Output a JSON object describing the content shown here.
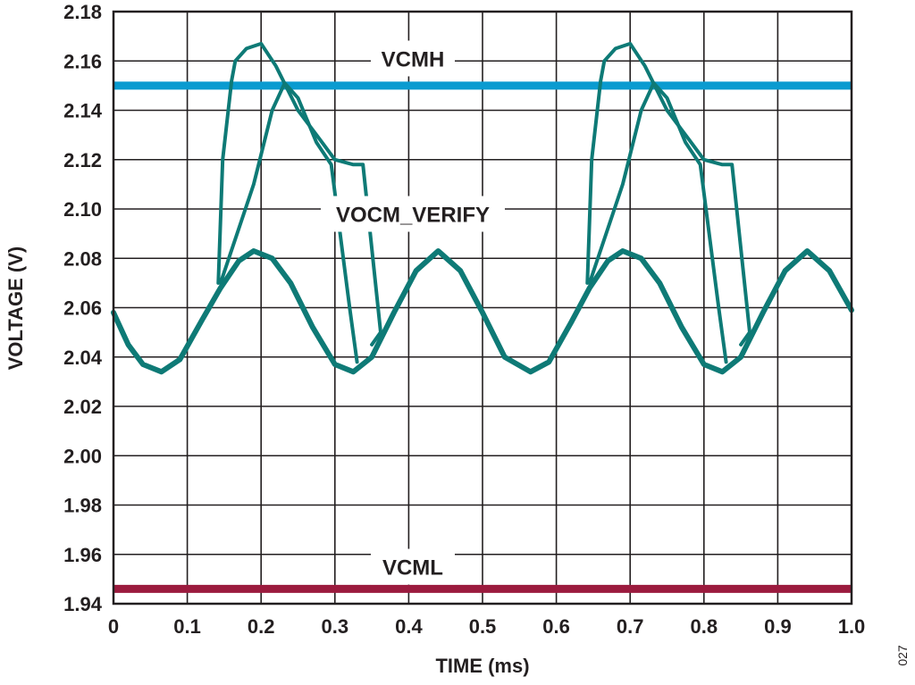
{
  "chart_data": {
    "type": "line",
    "xlabel": "TIME (ms)",
    "ylabel": "VOLTAGE (V)",
    "xlim": [
      0,
      1.0
    ],
    "ylim": [
      1.94,
      2.18
    ],
    "x_ticks": [
      "0",
      "0.1",
      "0.2",
      "0.3",
      "0.4",
      "0.5",
      "0.6",
      "0.7",
      "0.8",
      "0.9",
      "1.0"
    ],
    "y_ticks": [
      "1.94",
      "1.96",
      "1.98",
      "2.00",
      "2.02",
      "2.04",
      "2.06",
      "2.08",
      "2.10",
      "2.12",
      "2.14",
      "2.16",
      "2.18"
    ],
    "grid": true,
    "series": [
      {
        "name": "VCMH",
        "color": "#0a9bd0",
        "x": [
          0,
          1.0
        ],
        "y": [
          2.15,
          2.15
        ]
      },
      {
        "name": "VCML",
        "color": "#9b1b3e",
        "x": [
          0,
          1.0
        ],
        "y": [
          1.946,
          1.946
        ]
      },
      {
        "name": "VOCM_VERIFY",
        "color": "#0e7a76",
        "x": [
          0,
          0.02,
          0.04,
          0.065,
          0.09,
          0.12,
          0.145,
          0.17,
          0.19,
          0.215,
          0.24,
          0.27,
          0.3,
          0.325,
          0.35,
          0.38,
          0.41,
          0.44,
          0.47,
          0.5,
          0.53,
          0.565,
          0.59,
          0.62,
          0.645,
          0.67,
          0.69,
          0.715,
          0.74,
          0.77,
          0.8,
          0.825,
          0.85,
          0.88,
          0.91,
          0.94,
          0.97,
          1.0
        ],
        "y": [
          2.058,
          2.045,
          2.037,
          2.034,
          2.039,
          2.055,
          2.068,
          2.079,
          2.083,
          2.08,
          2.07,
          2.052,
          2.037,
          2.034,
          2.04,
          2.058,
          2.075,
          2.083,
          2.075,
          2.058,
          2.04,
          2.034,
          2.038,
          2.054,
          2.068,
          2.079,
          2.083,
          2.08,
          2.07,
          2.052,
          2.037,
          2.034,
          2.04,
          2.058,
          2.075,
          2.083,
          2.075,
          2.059
        ]
      },
      {
        "name": "",
        "color": "#0e7a76",
        "x": [
          0.142,
          0.148,
          0.16,
          0.165,
          0.18,
          0.2,
          0.22,
          0.25,
          0.28,
          0.3,
          0.325,
          0.338,
          0.362,
          0.35
        ],
        "y": [
          2.07,
          2.12,
          2.152,
          2.16,
          2.165,
          2.167,
          2.158,
          2.14,
          2.128,
          2.12,
          2.118,
          2.118,
          2.05,
          2.045
        ]
      },
      {
        "name": "",
        "color": "#0e7a76",
        "x": [
          0.145,
          0.19,
          0.215,
          0.232,
          0.25,
          0.275,
          0.295,
          0.32,
          0.33
        ],
        "y": [
          2.07,
          2.11,
          2.14,
          2.151,
          2.145,
          2.127,
          2.118,
          2.06,
          2.038
        ]
      },
      {
        "name": "",
        "color": "#0e7a76",
        "x": [
          0.642,
          0.648,
          0.66,
          0.665,
          0.68,
          0.7,
          0.72,
          0.75,
          0.78,
          0.8,
          0.825,
          0.838,
          0.862,
          0.85
        ],
        "y": [
          2.07,
          2.12,
          2.152,
          2.16,
          2.165,
          2.167,
          2.158,
          2.14,
          2.128,
          2.12,
          2.118,
          2.118,
          2.05,
          2.045
        ]
      },
      {
        "name": "",
        "color": "#0e7a76",
        "x": [
          0.645,
          0.69,
          0.715,
          0.732,
          0.75,
          0.775,
          0.795,
          0.82,
          0.83
        ],
        "y": [
          2.07,
          2.11,
          2.14,
          2.151,
          2.145,
          2.127,
          2.118,
          2.06,
          2.038
        ]
      }
    ],
    "annotations": [
      {
        "text": "VCMH",
        "x": 0.23,
        "y": 2.161
      },
      {
        "text": "VOCM_VERIFY",
        "x": 0.23,
        "y": 2.098
      },
      {
        "text": "VCML",
        "x": 0.23,
        "y": 1.955
      }
    ],
    "figure_id": "027"
  }
}
